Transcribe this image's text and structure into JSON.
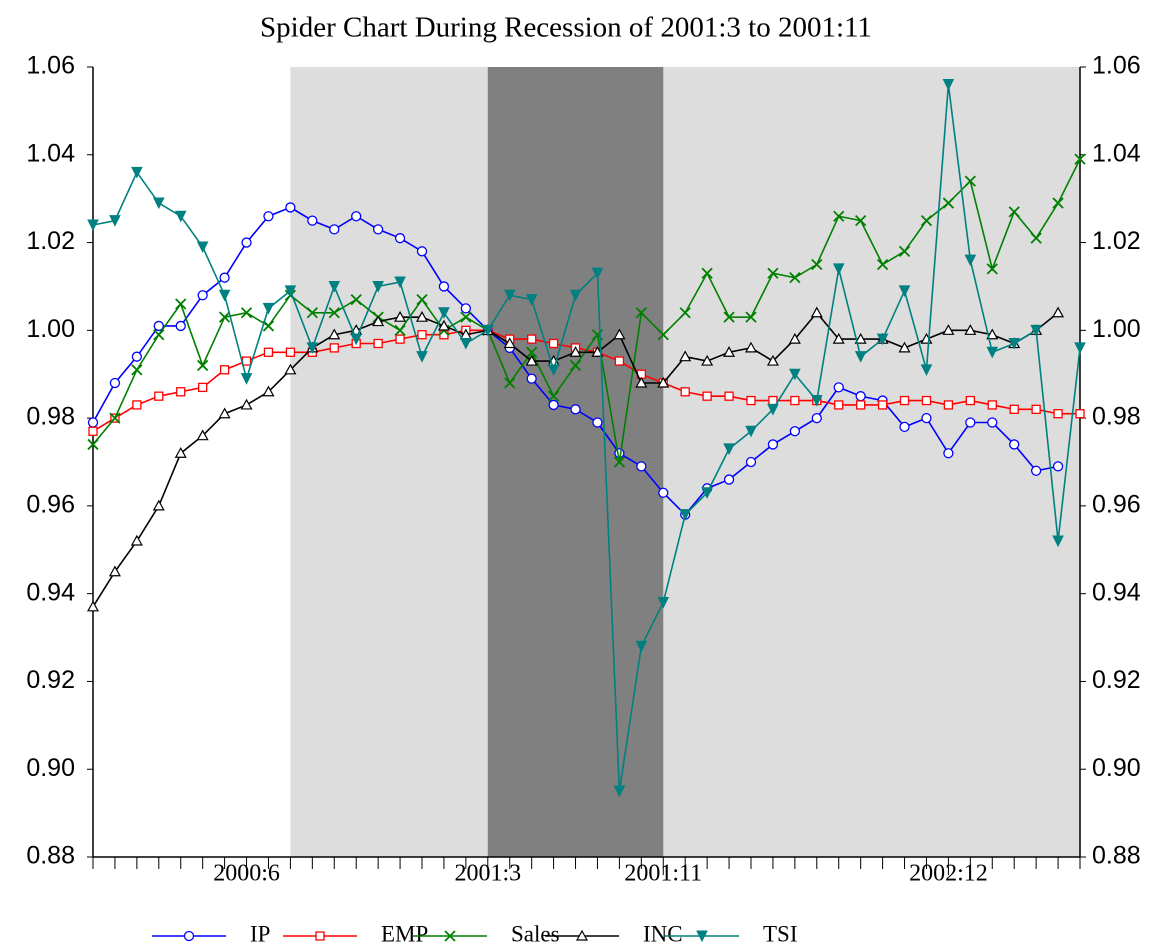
{
  "chart_data": {
    "type": "line",
    "title": "Spider Chart During Recession of 2001:3 to 2001:11",
    "categories": [
      null,
      null,
      null,
      null,
      null,
      null,
      null,
      "2000:6",
      null,
      null,
      null,
      null,
      null,
      null,
      null,
      null,
      null,
      null,
      "2001:3",
      null,
      null,
      null,
      null,
      null,
      null,
      null,
      "2001:11",
      null,
      null,
      null,
      null,
      null,
      null,
      null,
      null,
      null,
      null,
      null,
      null,
      "2002:12",
      null,
      null,
      null,
      null,
      null,
      null
    ],
    "shading": [
      {
        "from": 9,
        "to": 45,
        "color": "#dddddd"
      },
      {
        "from": 18,
        "to": 26,
        "color": "#808080"
      }
    ],
    "ylim": [
      0.88,
      1.06
    ],
    "yticks": [
      {
        "value": 0.88,
        "label": "0.88"
      },
      {
        "value": 0.9,
        "label": "0.90"
      },
      {
        "value": 0.92,
        "label": "0.92"
      },
      {
        "value": 0.94,
        "label": "0.94"
      },
      {
        "value": 0.96,
        "label": "0.96"
      },
      {
        "value": 0.98,
        "label": "0.98"
      },
      {
        "value": 1.0,
        "label": "1.00"
      },
      {
        "value": 1.02,
        "label": "1.02"
      },
      {
        "value": 1.04,
        "label": "1.04"
      },
      {
        "value": 1.06,
        "label": "1.06"
      }
    ],
    "y2lim": [
      0.88,
      1.06
    ],
    "y2ticks": [
      {
        "value": 0.88,
        "label": "0.88"
      },
      {
        "value": 0.9,
        "label": "0.90"
      },
      {
        "value": 0.92,
        "label": "0.92"
      },
      {
        "value": 0.94,
        "label": "0.94"
      },
      {
        "value": 0.96,
        "label": "0.96"
      },
      {
        "value": 0.98,
        "label": "0.98"
      },
      {
        "value": 1.0,
        "label": "1.00"
      },
      {
        "value": 1.02,
        "label": "1.02"
      },
      {
        "value": 1.04,
        "label": "1.04"
      },
      {
        "value": 1.06,
        "label": "1.06"
      }
    ],
    "series": [
      {
        "name": "IP",
        "color": "#0000ff",
        "marker": "circle",
        "values": [
          0.979,
          0.988,
          0.994,
          1.001,
          1.001,
          1.008,
          1.012,
          1.02,
          1.026,
          1.028,
          1.025,
          1.023,
          1.026,
          1.023,
          1.021,
          1.018,
          1.01,
          1.005,
          1.0,
          0.996,
          0.989,
          0.983,
          0.982,
          0.979,
          0.972,
          0.969,
          0.963,
          0.958,
          0.964,
          0.966,
          0.97,
          0.974,
          0.977,
          0.98,
          0.987,
          0.985,
          0.984,
          0.978,
          0.98,
          0.972,
          0.979,
          0.979,
          0.974,
          0.968,
          0.969,
          null
        ]
      },
      {
        "name": "EMP",
        "color": "#ff0000",
        "marker": "square",
        "values": [
          0.977,
          0.98,
          0.983,
          0.985,
          0.986,
          0.987,
          0.991,
          0.993,
          0.995,
          0.995,
          0.995,
          0.996,
          0.997,
          0.997,
          0.998,
          0.999,
          0.999,
          1.0,
          1.0,
          0.998,
          0.998,
          0.997,
          0.996,
          0.995,
          0.993,
          0.99,
          0.988,
          0.986,
          0.985,
          0.985,
          0.984,
          0.984,
          0.984,
          0.984,
          0.983,
          0.983,
          0.983,
          0.984,
          0.984,
          0.983,
          0.984,
          0.983,
          0.982,
          0.982,
          0.981,
          0.981
        ]
      },
      {
        "name": "Sales",
        "color": "#008000",
        "marker": "cross",
        "values": [
          0.974,
          0.98,
          0.991,
          0.999,
          1.006,
          0.992,
          1.003,
          1.004,
          1.001,
          1.008,
          1.004,
          1.004,
          1.007,
          1.003,
          1.0,
          1.007,
          1.0,
          1.003,
          1.0,
          0.988,
          0.995,
          0.985,
          0.992,
          0.999,
          0.97,
          1.004,
          0.999,
          1.004,
          1.013,
          1.003,
          1.003,
          1.013,
          1.012,
          1.015,
          1.026,
          1.025,
          1.015,
          1.018,
          1.025,
          1.029,
          1.034,
          1.014,
          1.027,
          1.021,
          1.029,
          1.039
        ]
      },
      {
        "name": "INC",
        "color": "#000000",
        "marker": "triangle",
        "values": [
          0.937,
          0.945,
          0.952,
          0.96,
          0.972,
          0.976,
          0.981,
          0.983,
          0.986,
          0.991,
          0.996,
          0.999,
          1.0,
          1.002,
          1.003,
          1.003,
          1.001,
          0.999,
          1.0,
          0.997,
          0.993,
          0.993,
          0.995,
          0.995,
          0.999,
          0.988,
          0.988,
          0.994,
          0.993,
          0.995,
          0.996,
          0.993,
          0.998,
          1.004,
          0.998,
          0.998,
          0.998,
          0.996,
          0.998,
          1.0,
          1.0,
          0.999,
          0.997,
          1.0,
          1.004,
          null
        ]
      },
      {
        "name": "TSI",
        "color": "#008080",
        "marker": "down-triangle",
        "values": [
          1.024,
          1.025,
          1.036,
          1.029,
          1.026,
          1.019,
          1.008,
          0.989,
          1.005,
          1.009,
          0.996,
          1.01,
          0.998,
          1.01,
          1.011,
          0.994,
          1.004,
          0.997,
          1.0,
          1.008,
          1.007,
          0.991,
          1.008,
          1.013,
          0.895,
          0.928,
          0.938,
          0.958,
          0.963,
          0.973,
          0.977,
          0.982,
          0.99,
          0.984,
          1.014,
          0.994,
          0.998,
          1.009,
          0.991,
          1.056,
          1.016,
          0.995,
          0.997,
          1.0,
          0.952,
          0.996
        ]
      }
    ]
  }
}
